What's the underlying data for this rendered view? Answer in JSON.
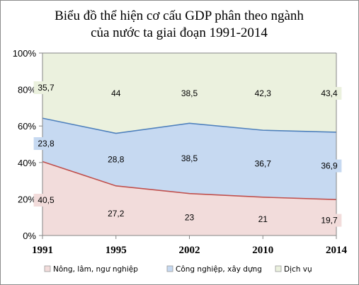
{
  "chart_data": {
    "type": "area",
    "stacked": "percent",
    "title_lines": [
      "Biểu đồ thể hiện cơ cấu GDP phân theo ngành",
      "của nước ta giai đoạn 1991-2014"
    ],
    "xlabel": "",
    "ylabel": "",
    "categories": [
      "1991",
      "1995",
      "2002",
      "2010",
      "2014"
    ],
    "ylim": [
      0,
      100
    ],
    "yticks": [
      "0%",
      "20%",
      "40%",
      "60%",
      "80%",
      "100%"
    ],
    "grid": false,
    "legend_position": "bottom",
    "series": [
      {
        "name": "Nông, lâm, ngư nghiệp",
        "values": [
          40.5,
          27.2,
          23,
          21,
          19.7
        ],
        "labels": [
          "40,5",
          "27,2",
          "23",
          "21",
          "19,7"
        ],
        "color": "#f2dcdb",
        "line_color": "#c0504d"
      },
      {
        "name": "Công nghiệp, xây dựng",
        "values": [
          23.8,
          28.8,
          38.5,
          36.7,
          36.9
        ],
        "labels": [
          "23,8",
          "28,8",
          "38,5",
          "36,7",
          "36,9"
        ],
        "color": "#c6d9f1",
        "line_color": "#4f81bd"
      },
      {
        "name": "Dịch vụ",
        "values": [
          35.7,
          44,
          38.5,
          42.3,
          43.4
        ],
        "labels": [
          "35,7",
          "44",
          "38,5",
          "42,3",
          "43,4"
        ],
        "color": "#ebf1de",
        "line_color": "#9bbb59"
      }
    ]
  }
}
